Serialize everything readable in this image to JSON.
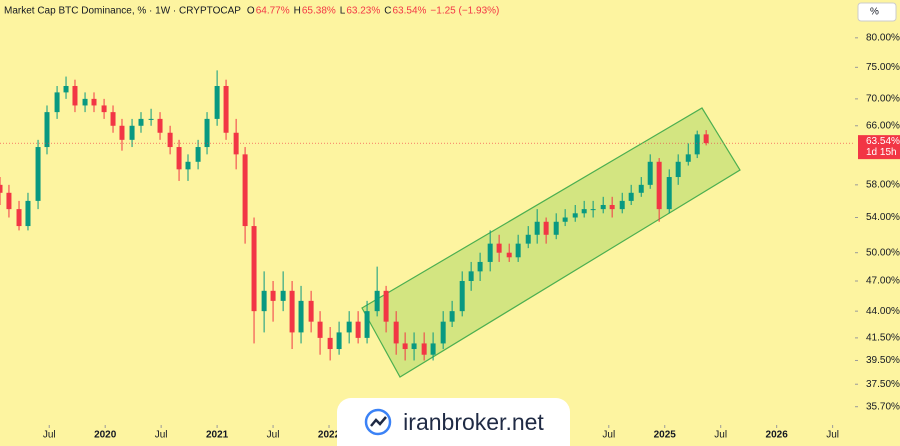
{
  "header": {
    "title": "Market Cap BTC Dominance, % · 1W · CRYPTOCAP",
    "fields": [
      {
        "key": "O",
        "label": "64.77%"
      },
      {
        "key": "H",
        "label": "65.38%"
      },
      {
        "key": "L",
        "label": "63.23%"
      },
      {
        "key": "C",
        "label": "63.54%"
      }
    ],
    "change": "−1.25 (−1.93%)",
    "unit_button": "%"
  },
  "watermark": "iranbroker.net",
  "chart_data": {
    "type": "candlestick",
    "log_scale": true,
    "up_color": "#089981",
    "down_color": "#f23645",
    "x": [
      2019.06,
      2019.14,
      2019.23,
      2019.31,
      2019.4,
      2019.48,
      2019.57,
      2019.65,
      2019.73,
      2019.82,
      2019.9,
      2019.99,
      2020.07,
      2020.15,
      2020.24,
      2020.32,
      2020.41,
      2020.49,
      2020.58,
      2020.66,
      2020.74,
      2020.83,
      2020.91,
      2021.0,
      2021.08,
      2021.17,
      2021.25,
      2021.33,
      2021.42,
      2021.5,
      2021.59,
      2021.67,
      2021.75,
      2021.84,
      2021.92,
      2022.01,
      2022.09,
      2022.18,
      2022.26,
      2022.34,
      2022.43,
      2022.51,
      2022.6,
      2022.68,
      2022.76,
      2022.85,
      2022.93,
      2023.02,
      2023.1,
      2023.19,
      2023.27,
      2023.35,
      2023.44,
      2023.52,
      2023.61,
      2023.69,
      2023.78,
      2023.86,
      2023.94,
      2024.03,
      2024.11,
      2024.2,
      2024.28,
      2024.36,
      2024.45,
      2024.53,
      2024.62,
      2024.7,
      2024.79,
      2024.87,
      2024.95,
      2025.04,
      2025.12,
      2025.21,
      2025.29,
      2025.37
    ],
    "open": [
      58,
      57,
      55,
      53,
      56,
      63,
      68,
      71,
      72,
      69,
      70,
      69,
      68,
      66,
      64,
      66,
      67,
      67,
      65,
      63,
      60,
      61,
      63,
      67,
      72,
      65,
      62,
      53,
      44,
      46,
      45,
      46,
      42,
      45,
      43,
      41.5,
      40.5,
      42,
      43,
      41.5,
      44,
      46,
      43,
      41,
      40.5,
      41,
      40,
      41,
      43,
      44,
      47,
      48,
      49,
      51,
      50,
      49.5,
      51,
      52,
      53.5,
      52,
      53.5,
      54,
      54.5,
      55,
      55,
      55.5,
      55,
      56,
      57,
      58,
      61,
      55,
      59,
      61,
      62,
      64.77
    ],
    "high": [
      59,
      58,
      56,
      57,
      64,
      69,
      72,
      73.5,
      73,
      71,
      71,
      70,
      69,
      67,
      67,
      68,
      68.5,
      68,
      66,
      64,
      62,
      64,
      68,
      74.5,
      73,
      67,
      63,
      54,
      48,
      47,
      48,
      47,
      46.5,
      46,
      44,
      42.5,
      43,
      44,
      44,
      45,
      48.5,
      46.5,
      44,
      42,
      42,
      42,
      42,
      44,
      45,
      48,
      49,
      50,
      52.5,
      52,
      51,
      52,
      53,
      55,
      54,
      54.5,
      55,
      55.5,
      56,
      56,
      56.5,
      56.5,
      57,
      58,
      59,
      62,
      61.5,
      60,
      62,
      63.5,
      65.3,
      65.38
    ],
    "low": [
      55.5,
      54,
      52.5,
      52.5,
      55,
      62,
      67,
      70,
      68,
      68,
      68,
      67,
      65,
      62.5,
      63,
      65,
      66,
      64,
      62,
      58.5,
      58.5,
      60,
      62,
      66,
      64,
      60,
      51,
      41,
      42,
      43,
      44,
      40.5,
      41,
      42,
      40,
      39.5,
      40,
      41,
      41,
      41,
      43.5,
      42,
      40,
      39.5,
      39.5,
      39.5,
      39.5,
      40.5,
      42.5,
      43.5,
      46,
      47,
      48,
      49,
      49,
      49,
      50.5,
      51,
      51,
      51.5,
      53,
      53.5,
      54,
      54,
      54.5,
      54,
      54.5,
      55.5,
      56.5,
      57.5,
      53.5,
      54.5,
      58,
      60.5,
      61.5,
      63.23
    ],
    "close": [
      57,
      55,
      53,
      56,
      63,
      68,
      71,
      72,
      69,
      70,
      69,
      68,
      66,
      64,
      66,
      67,
      67,
      65,
      63,
      60,
      61,
      63,
      67,
      72,
      65,
      62,
      53,
      44,
      46,
      45,
      46,
      42,
      45,
      43,
      41.5,
      40.5,
      42,
      43,
      41.5,
      44,
      46,
      43,
      41,
      40.5,
      41,
      40,
      41,
      43,
      44,
      47,
      48,
      49,
      51,
      50,
      49.5,
      51,
      52,
      53.5,
      52,
      53.5,
      54,
      54.5,
      55,
      55,
      55.5,
      55,
      56,
      57,
      58,
      61,
      55,
      59,
      61,
      62,
      64.77,
      63.54
    ],
    "last_price": {
      "value": 63.54,
      "label": "63.54%"
    },
    "countdown": "1d 15h",
    "ylim": [
      34.3,
      86.9
    ],
    "yticks": [
      {
        "value": 80,
        "label": "80.00%"
      },
      {
        "value": 75,
        "label": "75.00%"
      },
      {
        "value": 70,
        "label": "70.00%"
      },
      {
        "value": 66,
        "label": "66.00%"
      },
      {
        "value": 58,
        "label": "58.00%"
      },
      {
        "value": 54,
        "label": "54.00%"
      },
      {
        "value": 50,
        "label": "50.00%"
      },
      {
        "value": 47,
        "label": "47.00%"
      },
      {
        "value": 44,
        "label": "44.00%"
      },
      {
        "value": 41.5,
        "label": "41.50%"
      },
      {
        "value": 39.5,
        "label": "39.50%"
      },
      {
        "value": 37.5,
        "label": "37.50%"
      },
      {
        "value": 35.7,
        "label": "35.70%"
      }
    ],
    "xlim": [
      2019.06,
      2026.7
    ],
    "xticks": [
      {
        "value": 2019.5,
        "label": "Jul"
      },
      {
        "value": 2020,
        "label": "2020"
      },
      {
        "value": 2020.5,
        "label": "Jul"
      },
      {
        "value": 2021,
        "label": "2021"
      },
      {
        "value": 2021.5,
        "label": "Jul"
      },
      {
        "value": 2022,
        "label": "2022"
      },
      {
        "value": 2024.5,
        "label": "Jul"
      },
      {
        "value": 2025,
        "label": "2025"
      },
      {
        "value": 2025.5,
        "label": "Jul"
      },
      {
        "value": 2026,
        "label": "2026"
      },
      {
        "value": 2026.5,
        "label": "Jul"
      }
    ]
  }
}
